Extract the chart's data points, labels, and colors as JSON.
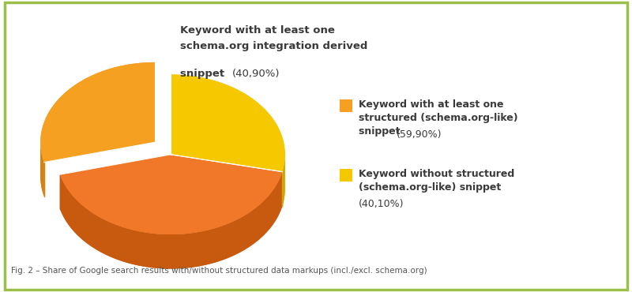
{
  "slices": [
    40.9,
    59.9,
    40.1
  ],
  "slice_order": "schema_derived, structured, without_structured",
  "colors_top": [
    "#F5A020",
    "#F07828",
    "#F5C800"
  ],
  "colors_side": [
    "#D98010",
    "#C85A10",
    "#D4A800"
  ],
  "explode_first": 0.07,
  "startangle": 90,
  "caption": "Fig. 2 – Share of Google search results with/without structured data markups (incl./excl. schema.org)",
  "background_color": "#FFFFFF",
  "border_color": "#9BBF4A",
  "label0_line1": "Keyword with at least one",
  "label0_line2": "schema.org integration derived",
  "label0_line3": "snippet ",
  "label0_pct": "(40,90%)",
  "label1_bold": "Keyword with at least one\nstructured (schema.org-like)\nsnippet ",
  "label1_pct": "(59,90%)",
  "label2_bold": "Keyword without structured\n(schema.org-like) snippet\n",
  "label2_pct": "(40,10%)",
  "legend_color1": "#F5A020",
  "legend_color2": "#F5C800"
}
